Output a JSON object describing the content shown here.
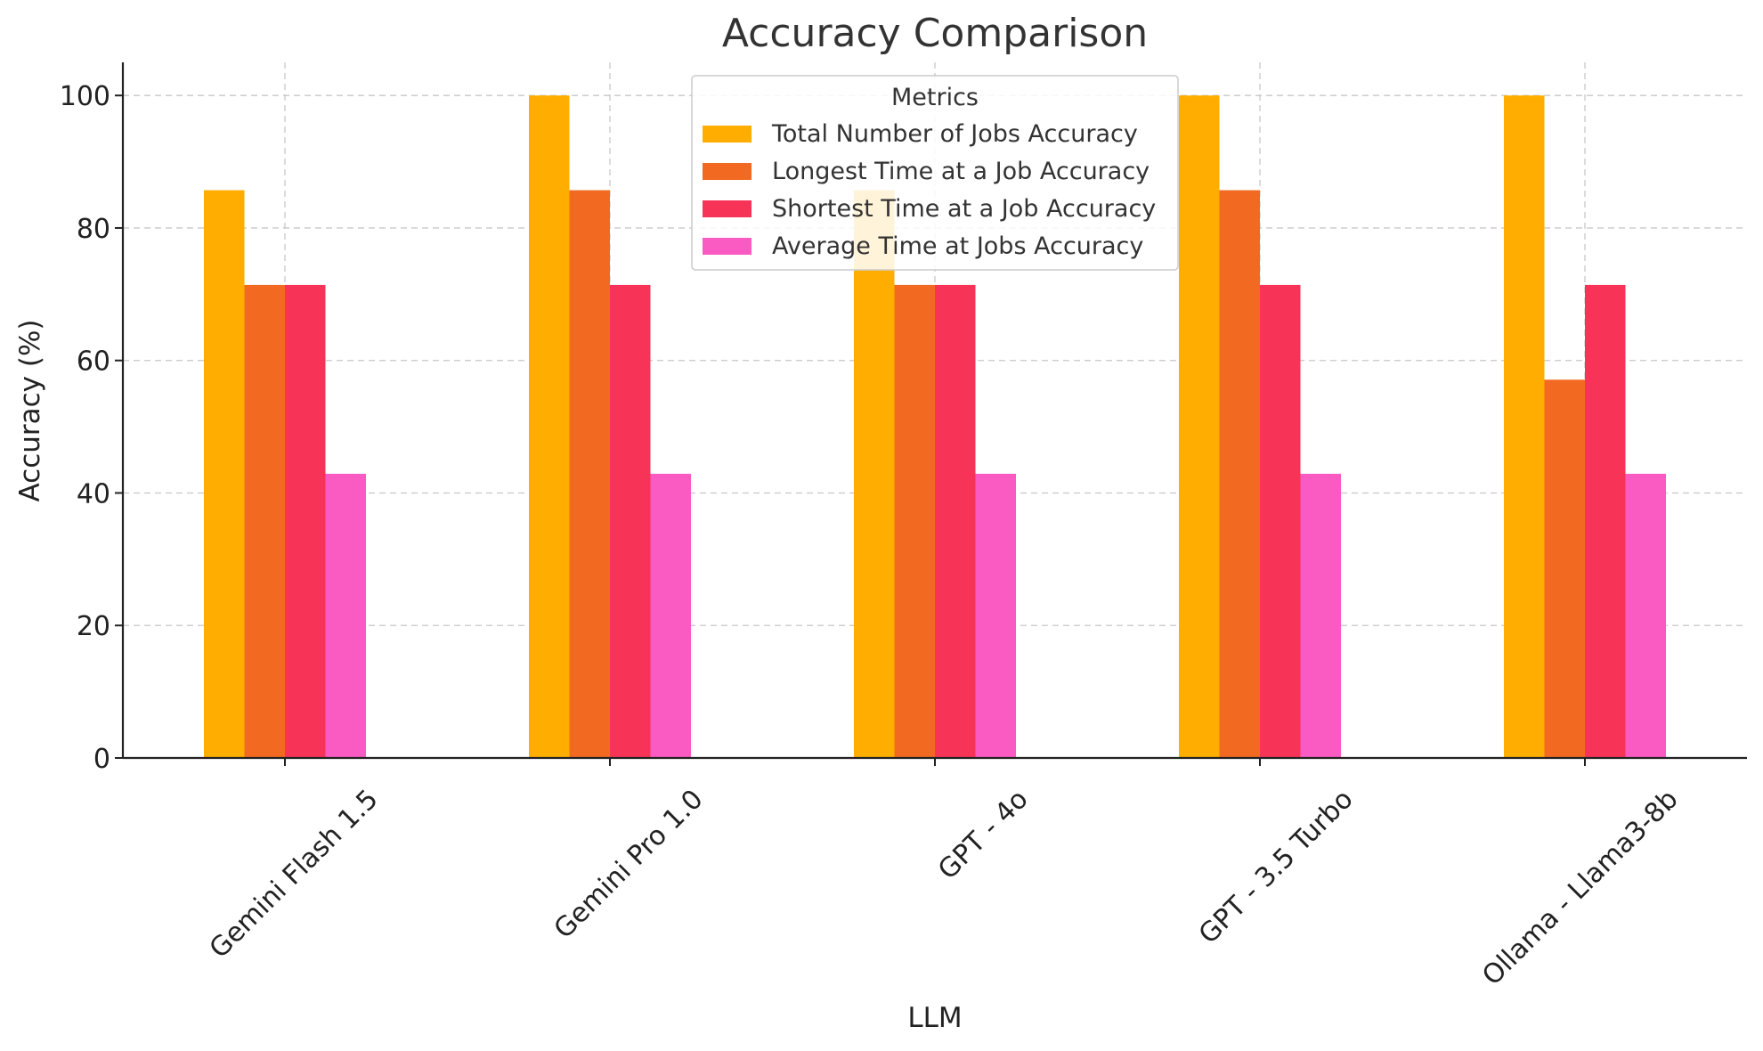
{
  "chart_data": {
    "type": "bar",
    "title": "Accuracy Comparison",
    "xlabel": "LLM",
    "ylabel": "Accuracy (%)",
    "categories": [
      "Gemini Flash 1.5",
      "Gemini Pro 1.0",
      "GPT - 4o",
      "GPT - 3.5 Turbo",
      "Ollama - Llama3-8b"
    ],
    "series": [
      {
        "name": "Total Number of Jobs Accuracy",
        "color": "#FFAE00",
        "values": [
          85.7,
          100,
          85.7,
          100,
          100
        ]
      },
      {
        "name": "Longest Time at a Job Accuracy",
        "color": "#F26A22",
        "values": [
          71.4,
          85.7,
          71.4,
          85.7,
          57.1
        ]
      },
      {
        "name": "Shortest Time at a Job Accuracy",
        "color": "#F73458",
        "values": [
          71.4,
          71.4,
          71.4,
          71.4,
          71.4
        ]
      },
      {
        "name": "Average Time at Jobs Accuracy",
        "color": "#F95BC3",
        "values": [
          42.9,
          42.9,
          42.9,
          42.9,
          42.9
        ]
      }
    ],
    "ylim": [
      0,
      105
    ],
    "yticks": [
      0,
      20,
      40,
      60,
      80,
      100
    ],
    "grid": true,
    "legend": {
      "title": "Metrics",
      "position": "top-center"
    }
  }
}
